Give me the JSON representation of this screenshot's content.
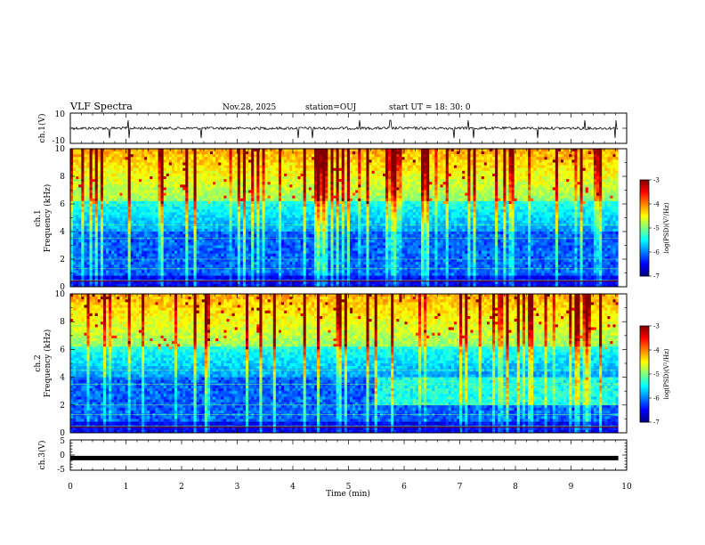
{
  "header": {
    "title": "VLF Spectra",
    "date": "Nov.28, 2025",
    "station": "station=OUJ",
    "start_ut": "start  UT =   18: 30: 0"
  },
  "colors": {
    "trace": "#000000",
    "colormap": [
      "#00007f",
      "#0000ff",
      "#00ffff",
      "#7fff7f",
      "#ffff00",
      "#ff0000",
      "#7f0000"
    ]
  },
  "chart_data": [
    {
      "id": "ch1-waveform",
      "type": "line",
      "ylabel": "ch.1(V)",
      "ylim": [
        -10,
        10
      ],
      "yticks": [
        "10",
        "-10"
      ],
      "baseline": 0,
      "description_series": "noisy waveform around 0 V with occasional spikes"
    },
    {
      "id": "ch1-spectrogram",
      "type": "heatmap",
      "ylabel_channel": "ch.1",
      "ylabel": "Frequency (kHz)",
      "ylim": [
        0,
        10
      ],
      "yticks": [
        "0",
        "2",
        "4",
        "6",
        "8",
        "10"
      ],
      "colorbar": {
        "label": "log(PSD)(V²/Hz)",
        "range": [
          -7,
          -3
        ],
        "ticks": [
          "-3",
          "-4",
          "-5",
          "-6",
          "-7"
        ]
      }
    },
    {
      "id": "ch2-spectrogram",
      "type": "heatmap",
      "ylabel_channel": "ch.2",
      "ylabel": "Frequency (kHz)",
      "ylim": [
        0,
        10
      ],
      "yticks": [
        "0",
        "2",
        "4",
        "6",
        "8",
        "10"
      ],
      "colorbar": {
        "label": "log(PSD)(V²/Hz)",
        "range": [
          -7,
          -3
        ],
        "ticks": [
          "-3",
          "-4",
          "-5",
          "-6",
          "-7"
        ]
      }
    },
    {
      "id": "ch3-waveform",
      "type": "line",
      "ylabel": "ch.3(V)",
      "ylim": [
        -5,
        5
      ],
      "yticks": [
        "5",
        "0",
        "-5"
      ],
      "baseline": -1,
      "data_end_min": 9.85
    }
  ],
  "xaxis": {
    "label": "Time (min)",
    "range": [
      0,
      10
    ],
    "ticks": [
      "0",
      "1",
      "2",
      "3",
      "4",
      "5",
      "6",
      "7",
      "8",
      "9",
      "10"
    ],
    "data_end_min": 9.85
  }
}
